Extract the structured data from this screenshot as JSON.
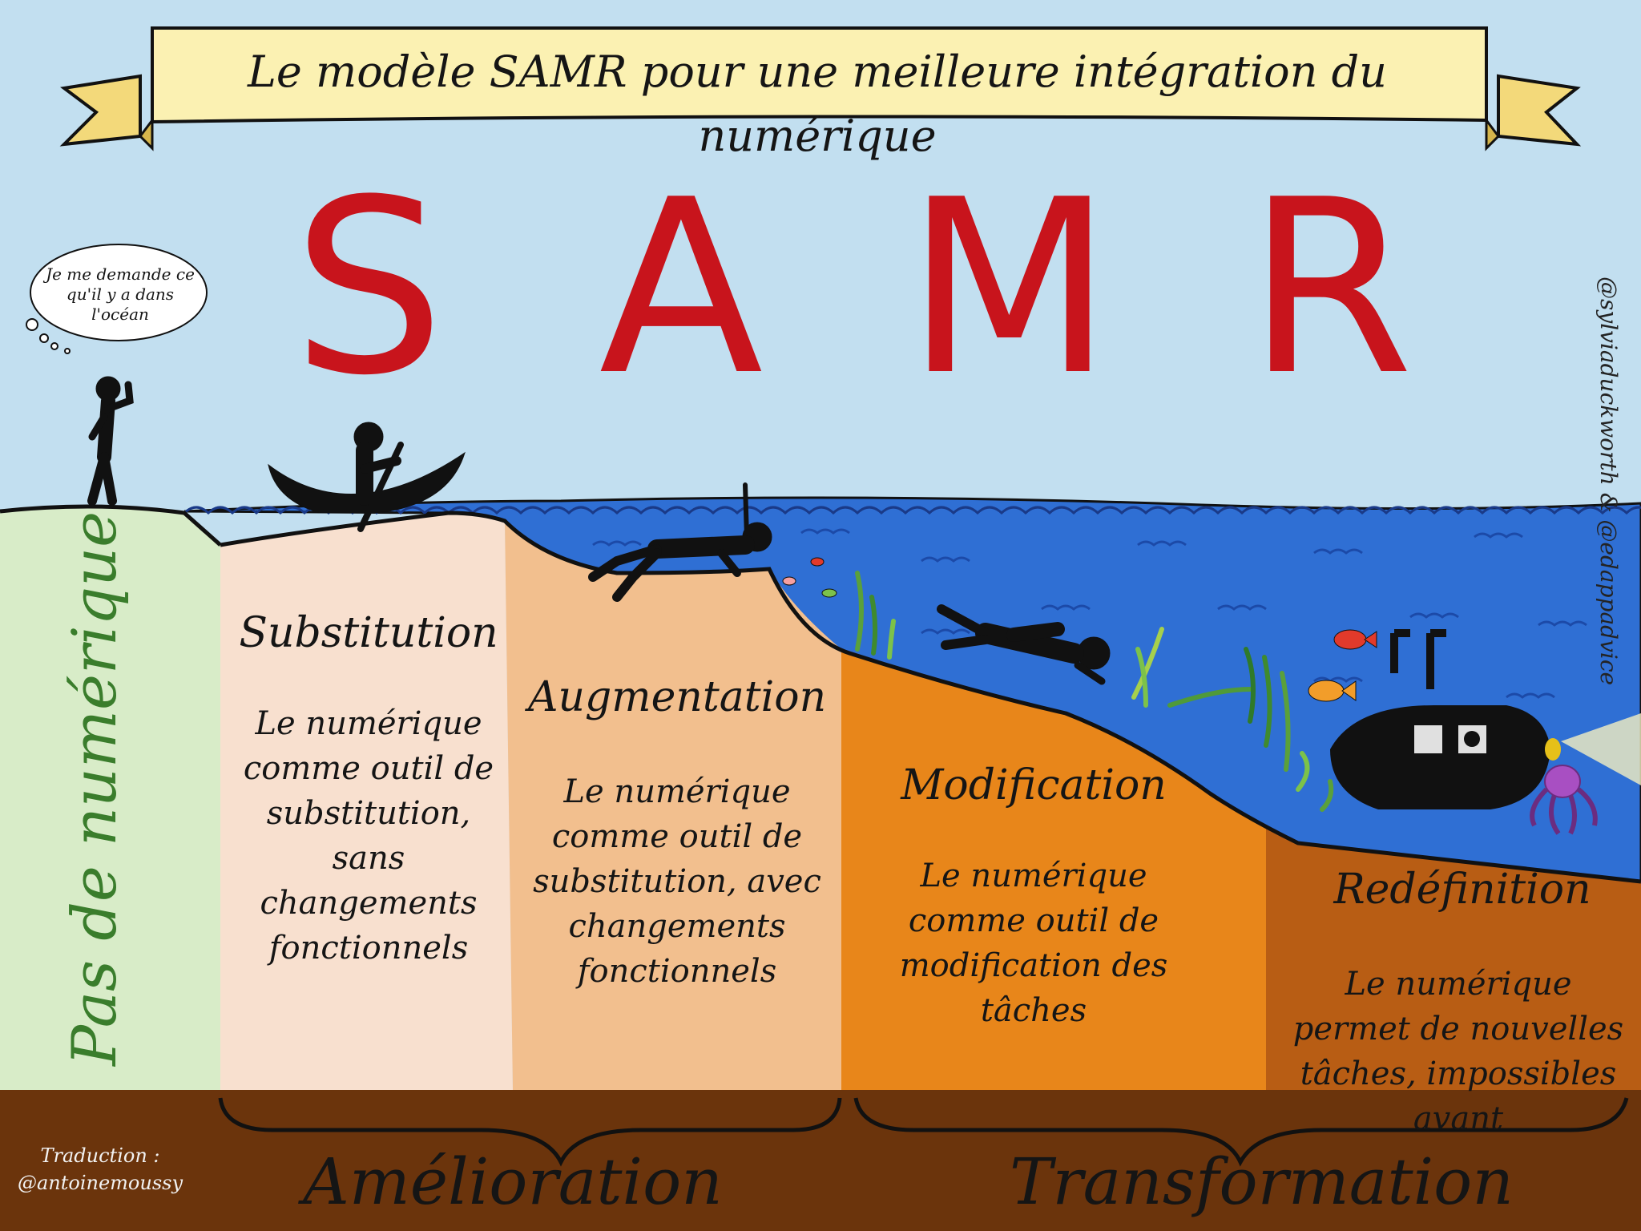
{
  "title": "Le modèle SAMR pour une meilleure intégration du numérique",
  "letters": [
    "S",
    "A",
    "M",
    "R"
  ],
  "thought_bubble": "Je me demande ce qu'il y a dans l'océan",
  "credits": {
    "side": "@sylviaduckworth & @edappadvice",
    "translation_label": "Traduction :",
    "translator": "@antoinemoussy"
  },
  "no_digital_label": "Pas de numérique",
  "levels": [
    {
      "title": "Substitution",
      "description": "Le numérique comme outil de substitution, sans changements fonctionnels"
    },
    {
      "title": "Augmentation",
      "description": "Le numérique comme outil de substitution, avec changements fonctionnels"
    },
    {
      "title": "Modification",
      "description": "Le numérique comme outil de modification des tâches"
    },
    {
      "title": "Redéfinition",
      "description": "Le numérique permet de nouvelles tâches, impossibles avant"
    }
  ],
  "categories": [
    "Amélioration",
    "Transformation"
  ],
  "colors": {
    "sky": "#c2dff0",
    "ocean": "#2f6fd4",
    "no_digital": "#d8ecc8",
    "substitution": "#f8e0cf",
    "augmentation": "#f2bf8e",
    "modification": "#e8861a",
    "redefinition": "#b85d14",
    "ground": "#6b340c",
    "letters": "#c8141c",
    "banner": "#fbf1b2"
  }
}
